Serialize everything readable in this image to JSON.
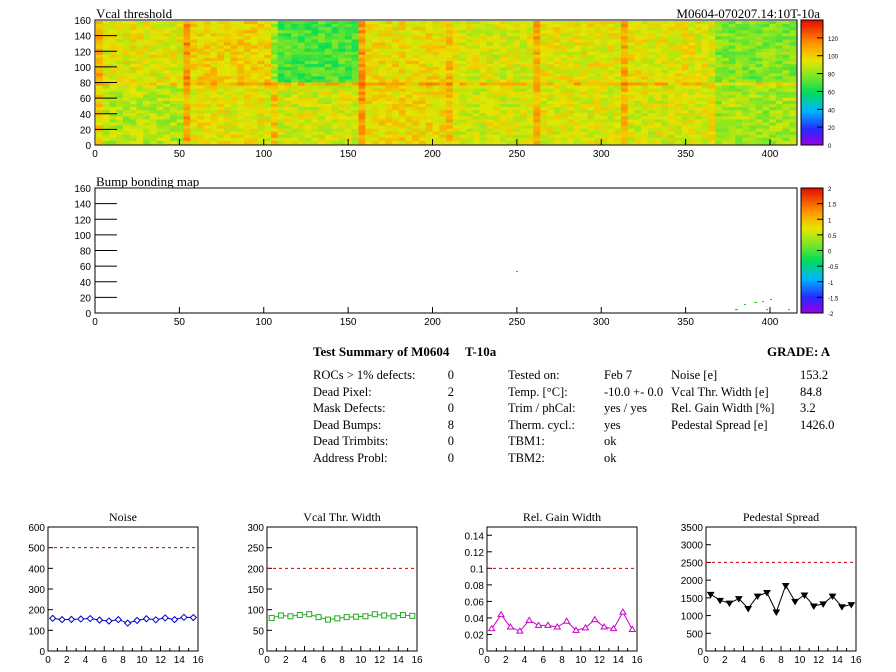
{
  "header": {
    "module_tag": "M0604-070207.14:10T-10a"
  },
  "maps": [
    {
      "id": "vcal",
      "title": "Vcal threshold",
      "x_ticks": [
        "0",
        "50",
        "100",
        "150",
        "200",
        "250",
        "300",
        "350",
        "400"
      ],
      "y_ticks": [
        "0",
        "20",
        "40",
        "60",
        "80",
        "100",
        "120",
        "140",
        "160"
      ],
      "colorbar_ticks": [
        "0",
        "20",
        "40",
        "60",
        "80",
        "100",
        "120"
      ]
    },
    {
      "id": "bump",
      "title": "Bump bonding map",
      "x_ticks": [
        "0",
        "50",
        "100",
        "150",
        "200",
        "250",
        "300",
        "350",
        "400"
      ],
      "y_ticks": [
        "0",
        "20",
        "40",
        "60",
        "80",
        "100",
        "120",
        "140",
        "160"
      ],
      "colorbar_ticks": [
        "-2",
        "-1.5",
        "-1",
        "-0.5",
        "0",
        "0.5",
        "1",
        "1.5",
        "2"
      ]
    }
  ],
  "summary": {
    "title": "Test Summary of M0604",
    "module_label": "T-10a",
    "grade_label": "GRADE:  A",
    "col1": [
      {
        "label": "ROCs > 1% defects:",
        "value": "0"
      },
      {
        "label": "Dead Pixel:",
        "value": "2"
      },
      {
        "label": "Mask Defects:",
        "value": "0"
      },
      {
        "label": "Dead Bumps:",
        "value": "8"
      },
      {
        "label": "Dead Trimbits:",
        "value": "0"
      },
      {
        "label": "Address Probl:",
        "value": "0"
      }
    ],
    "col2": [
      {
        "label": "Tested on:",
        "value": "Feb 7"
      },
      {
        "label": "Temp. [°C]:",
        "value": "-10.0 +- 0.0"
      },
      {
        "label": "Trim / phCal:",
        "value": "yes / yes"
      },
      {
        "label": "Therm. cycl.:",
        "value": "yes"
      },
      {
        "label": "TBM1:",
        "value": "ok"
      },
      {
        "label": "TBM2:",
        "value": "ok"
      }
    ],
    "col3": [
      {
        "label": "Noise [e]",
        "value": "153.2"
      },
      {
        "label": "Vcal Thr. Width [e]",
        "value": "84.8"
      },
      {
        "label": "Rel. Gain Width [%]",
        "value": "3.2"
      },
      {
        "label": "Pedestal Spread [e]",
        "value": "1426.0"
      }
    ]
  },
  "chart_data": [
    {
      "type": "line",
      "title": "Noise",
      "color": "#0000cc",
      "marker": "diamond",
      "x": [
        0,
        1,
        2,
        3,
        4,
        5,
        6,
        7,
        8,
        9,
        10,
        11,
        12,
        13,
        14,
        15
      ],
      "values": [
        158,
        152,
        153,
        155,
        157,
        150,
        145,
        152,
        135,
        148,
        156,
        151,
        160,
        152,
        163,
        162
      ],
      "ylim": [
        0,
        600
      ],
      "threshold": 500,
      "y_ticks": [
        "0",
        "100",
        "200",
        "300",
        "400",
        "500",
        "600"
      ],
      "x_ticks": [
        "0",
        "2",
        "4",
        "6",
        "8",
        "10",
        "12",
        "14",
        "16"
      ]
    },
    {
      "type": "line",
      "title": "Vcal Thr. Width",
      "color": "#22aa22",
      "marker": "square",
      "x": [
        0,
        1,
        2,
        3,
        4,
        5,
        6,
        7,
        8,
        9,
        10,
        11,
        12,
        13,
        14,
        15
      ],
      "values": [
        80,
        86,
        84,
        87,
        89,
        82,
        76,
        79,
        82,
        83,
        84,
        89,
        86,
        84,
        87,
        85
      ],
      "ylim": [
        0,
        300
      ],
      "threshold": 200,
      "y_ticks": [
        "0",
        "50",
        "100",
        "150",
        "200",
        "250",
        "300"
      ],
      "x_ticks": [
        "0",
        "2",
        "4",
        "6",
        "8",
        "10",
        "12",
        "14",
        "16"
      ]
    },
    {
      "type": "line",
      "title": "Rel. Gain Width",
      "color": "#cc00cc",
      "marker": "triangle",
      "x": [
        0,
        1,
        2,
        3,
        4,
        5,
        6,
        7,
        8,
        9,
        10,
        11,
        12,
        13,
        14,
        15
      ],
      "values": [
        0.027,
        0.044,
        0.029,
        0.024,
        0.037,
        0.031,
        0.031,
        0.029,
        0.036,
        0.025,
        0.028,
        0.038,
        0.029,
        0.027,
        0.047,
        0.026
      ],
      "ylim": [
        0,
        0.15
      ],
      "threshold": 0.1,
      "y_ticks": [
        "0",
        "0.02",
        "0.04",
        "0.06",
        "0.08",
        "0.1",
        "0.12",
        "0.14"
      ],
      "x_ticks": [
        "0",
        "2",
        "4",
        "6",
        "8",
        "10",
        "12",
        "14",
        "16"
      ]
    },
    {
      "type": "line",
      "title": "Pedestal Spread",
      "color": "#000000",
      "marker": "triangle-down",
      "x": [
        0,
        1,
        2,
        3,
        4,
        5,
        6,
        7,
        8,
        9,
        10,
        11,
        12,
        13,
        14,
        15
      ],
      "values": [
        1600,
        1430,
        1350,
        1480,
        1200,
        1550,
        1650,
        1100,
        1850,
        1400,
        1580,
        1270,
        1330,
        1550,
        1250,
        1310
      ],
      "ylim": [
        0,
        3500
      ],
      "threshold": 2500,
      "y_ticks": [
        "0",
        "500",
        "1000",
        "1500",
        "2000",
        "2500",
        "3000",
        "3500"
      ],
      "x_ticks": [
        "0",
        "2",
        "4",
        "6",
        "8",
        "10",
        "12",
        "14",
        "16"
      ]
    }
  ]
}
